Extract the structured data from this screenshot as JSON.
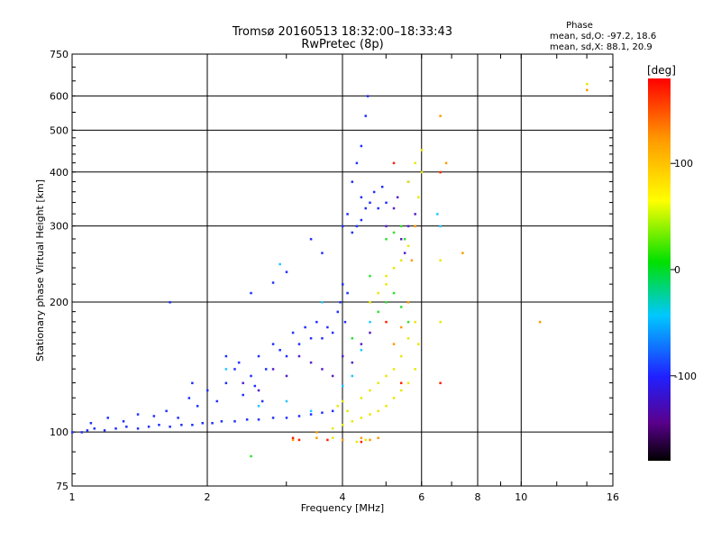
{
  "chart_data": {
    "type": "scatter",
    "title": "Tromsø 20160513 18:32:00–18:33:43",
    "subtitle": "RwPretec (8p)",
    "xlabel": "Frequency [MHz]",
    "ylabel": "Stationary phase Virtual Height [km]",
    "x_scale": "log",
    "y_scale": "log",
    "xlim": [
      1,
      16
    ],
    "ylim": [
      75,
      750
    ],
    "x_ticks": [
      1,
      2,
      4,
      6,
      8,
      10,
      16
    ],
    "y_ticks": [
      75,
      100,
      200,
      300,
      400,
      500,
      600,
      750
    ],
    "x_gridlines": [
      2,
      4,
      6,
      8,
      10
    ],
    "y_gridlines": [
      100,
      200,
      300,
      400,
      500,
      600
    ],
    "grid": true,
    "stats": {
      "title": "Phase",
      "line_o": "mean, sd,O: -97.2, 18.6",
      "line_x": "mean, sd,X:  88.1, 20.9"
    },
    "colorbar": {
      "label": "[deg]",
      "range": [
        -180,
        180
      ],
      "ticks": [
        100,
        0,
        -100
      ],
      "colormap": "rainbow"
    },
    "series": [
      {
        "color_hex": "#2030ff",
        "points": [
          [
            1.0,
            100
          ],
          [
            1.05,
            100
          ],
          [
            1.08,
            101
          ],
          [
            1.12,
            102
          ],
          [
            1.18,
            101
          ],
          [
            1.25,
            102
          ],
          [
            1.32,
            103
          ],
          [
            1.4,
            102
          ],
          [
            1.48,
            103
          ],
          [
            1.56,
            104
          ],
          [
            1.65,
            103
          ],
          [
            1.75,
            104
          ],
          [
            1.85,
            104
          ],
          [
            1.95,
            105
          ],
          [
            2.05,
            105
          ],
          [
            2.15,
            106
          ],
          [
            2.3,
            106
          ],
          [
            2.45,
            107
          ],
          [
            2.6,
            107
          ],
          [
            2.8,
            108
          ],
          [
            3.0,
            108
          ],
          [
            3.2,
            109
          ],
          [
            3.4,
            110
          ],
          [
            3.6,
            111
          ],
          [
            3.8,
            112
          ],
          [
            1.1,
            105
          ],
          [
            1.2,
            108
          ],
          [
            1.3,
            106
          ],
          [
            1.4,
            110
          ],
          [
            1.52,
            109
          ],
          [
            1.62,
            112
          ],
          [
            1.72,
            108
          ],
          [
            1.82,
            120
          ],
          [
            1.85,
            130
          ],
          [
            1.9,
            115
          ],
          [
            2.0,
            125
          ],
          [
            2.1,
            118
          ],
          [
            2.2,
            130
          ],
          [
            2.3,
            140
          ],
          [
            2.4,
            122
          ],
          [
            2.5,
            135
          ],
          [
            2.6,
            150
          ],
          [
            2.7,
            140
          ],
          [
            2.8,
            160
          ],
          [
            2.9,
            155
          ],
          [
            3.0,
            150
          ],
          [
            3.1,
            170
          ],
          [
            3.2,
            160
          ],
          [
            3.3,
            175
          ],
          [
            3.4,
            165
          ],
          [
            3.5,
            180
          ],
          [
            3.6,
            165
          ],
          [
            3.7,
            175
          ],
          [
            3.8,
            170
          ],
          [
            3.9,
            190
          ],
          [
            3.95,
            200
          ],
          [
            4.0,
            220
          ],
          [
            4.05,
            180
          ],
          [
            4.1,
            210
          ],
          [
            4.0,
            300
          ],
          [
            4.1,
            320
          ],
          [
            4.2,
            380
          ],
          [
            4.3,
            420
          ],
          [
            4.4,
            460
          ],
          [
            4.5,
            540
          ],
          [
            4.55,
            600
          ],
          [
            4.4,
            350
          ],
          [
            4.5,
            330
          ],
          [
            4.6,
            340
          ],
          [
            4.7,
            360
          ],
          [
            4.8,
            330
          ],
          [
            4.9,
            370
          ],
          [
            5.0,
            340
          ],
          [
            4.2,
            290
          ],
          [
            4.3,
            300
          ],
          [
            4.4,
            310
          ],
          [
            3.0,
            235
          ],
          [
            2.8,
            222
          ],
          [
            2.5,
            210
          ],
          [
            3.6,
            260
          ],
          [
            3.4,
            280
          ],
          [
            1.65,
            200
          ],
          [
            2.2,
            150
          ],
          [
            2.35,
            145
          ],
          [
            2.55,
            128
          ],
          [
            2.65,
            118
          ]
        ]
      },
      {
        "color_hex": "#5a20c8",
        "points": [
          [
            2.4,
            130
          ],
          [
            2.6,
            125
          ],
          [
            2.8,
            140
          ],
          [
            3.0,
            135
          ],
          [
            3.2,
            150
          ],
          [
            3.4,
            145
          ],
          [
            3.6,
            140
          ],
          [
            3.8,
            135
          ],
          [
            4.0,
            150
          ],
          [
            4.2,
            145
          ],
          [
            4.4,
            160
          ],
          [
            4.6,
            170
          ],
          [
            5.0,
            300
          ],
          [
            5.2,
            330
          ],
          [
            5.4,
            280
          ],
          [
            5.6,
            300
          ],
          [
            5.8,
            320
          ],
          [
            5.5,
            260
          ],
          [
            5.3,
            350
          ],
          [
            5.6,
            380
          ]
        ]
      },
      {
        "color_hex": "#20c8ff",
        "points": [
          [
            2.2,
            140
          ],
          [
            2.6,
            115
          ],
          [
            3.0,
            118
          ],
          [
            3.4,
            112
          ],
          [
            4.0,
            128
          ],
          [
            4.2,
            135
          ],
          [
            4.4,
            155
          ],
          [
            4.6,
            180
          ],
          [
            6.5,
            320
          ],
          [
            6.6,
            300
          ],
          [
            2.9,
            245
          ],
          [
            3.6,
            200
          ]
        ]
      },
      {
        "color_hex": "#30e030",
        "points": [
          [
            4.8,
            190
          ],
          [
            5.0,
            200
          ],
          [
            5.2,
            210
          ],
          [
            5.4,
            195
          ],
          [
            5.6,
            180
          ],
          [
            5.0,
            280
          ],
          [
            5.2,
            290
          ],
          [
            5.4,
            300
          ],
          [
            5.5,
            280
          ],
          [
            2.5,
            88
          ],
          [
            4.2,
            165
          ],
          [
            4.6,
            230
          ]
        ]
      },
      {
        "color_hex": "#e8e800",
        "points": [
          [
            3.8,
            102
          ],
          [
            4.0,
            104
          ],
          [
            4.2,
            106
          ],
          [
            4.4,
            108
          ],
          [
            4.6,
            110
          ],
          [
            4.8,
            112
          ],
          [
            5.0,
            115
          ],
          [
            5.2,
            120
          ],
          [
            5.4,
            125
          ],
          [
            5.6,
            130
          ],
          [
            5.8,
            140
          ],
          [
            5.9,
            160
          ],
          [
            4.4,
            120
          ],
          [
            4.6,
            125
          ],
          [
            4.8,
            130
          ],
          [
            5.0,
            135
          ],
          [
            5.2,
            140
          ],
          [
            5.4,
            150
          ],
          [
            5.6,
            165
          ],
          [
            5.8,
            180
          ],
          [
            5.0,
            230
          ],
          [
            5.2,
            240
          ],
          [
            5.4,
            250
          ],
          [
            5.6,
            270
          ],
          [
            5.8,
            300
          ],
          [
            5.9,
            350
          ],
          [
            6.0,
            400
          ],
          [
            6.0,
            450
          ],
          [
            5.8,
            420
          ],
          [
            5.6,
            380
          ],
          [
            4.6,
            200
          ],
          [
            4.8,
            210
          ],
          [
            5.0,
            220
          ],
          [
            3.9,
            115
          ],
          [
            4.0,
            118
          ],
          [
            4.1,
            112
          ],
          [
            4.3,
            95
          ],
          [
            4.5,
            96
          ],
          [
            3.8,
            97
          ],
          [
            6.6,
            400
          ],
          [
            6.6,
            250
          ],
          [
            6.6,
            180
          ],
          [
            14.0,
            640
          ]
        ]
      },
      {
        "color_hex": "#ff9a00",
        "points": [
          [
            3.1,
            96
          ],
          [
            3.5,
            97
          ],
          [
            4.0,
            96
          ],
          [
            4.4,
            97
          ],
          [
            4.6,
            96
          ],
          [
            5.2,
            160
          ],
          [
            5.4,
            175
          ],
          [
            5.6,
            200
          ],
          [
            6.6,
            540
          ],
          [
            6.8,
            420
          ],
          [
            7.4,
            260
          ],
          [
            11.0,
            180
          ],
          [
            14.0,
            620
          ],
          [
            5.8,
            300
          ],
          [
            5.7,
            250
          ],
          [
            3.5,
            100
          ],
          [
            4.8,
            97
          ]
        ]
      },
      {
        "color_hex": "#ff2000",
        "points": [
          [
            3.2,
            96
          ],
          [
            3.7,
            96
          ],
          [
            4.4,
            95
          ],
          [
            5.0,
            180
          ],
          [
            5.2,
            420
          ],
          [
            6.6,
            400
          ],
          [
            6.6,
            130
          ],
          [
            5.4,
            130
          ],
          [
            3.1,
            97
          ]
        ]
      }
    ]
  }
}
